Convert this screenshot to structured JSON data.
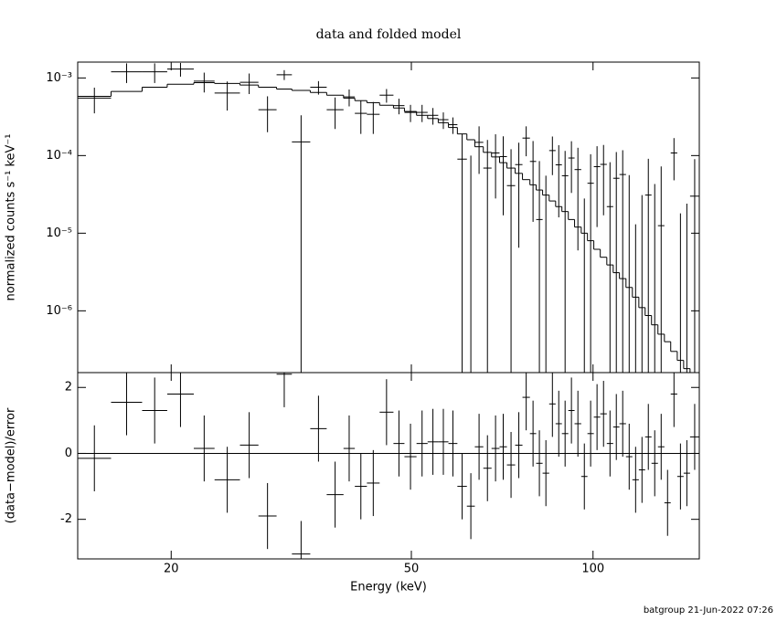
{
  "chart_data": {
    "title": "data and folded model",
    "xlabel": "Energy (keV)",
    "footer": "batgroup 21-Jun-2022 07:26",
    "xscale": "log",
    "xlim": [
      14,
      150
    ],
    "xticks": [
      20,
      50,
      100
    ],
    "bins": [
      14,
      15.9,
      17.9,
      19.7,
      21.8,
      23.6,
      26.0,
      27.9,
      29.9,
      31.7,
      34.0,
      36.2,
      38.6,
      40.3,
      42.2,
      44.3,
      46.7,
      48.7,
      51.0,
      53.2,
      55.4,
      57.6,
      59.6,
      61.8,
      63.7,
      65.8,
      67.9,
      70.0,
      72.0,
      74.3,
      76.4,
      78.6,
      80.5,
      82.5,
      84.6,
      86.7,
      88.8,
      91.0,
      93.2,
      95.6,
      97.9,
      100.3,
      102.8,
      105.4,
      108.0,
      110.6,
      113.4,
      116.2,
      119.1,
      122.0,
      125.0,
      128.1,
      131.3,
      134.5,
      137.9,
      141.3,
      144.8,
      150
    ],
    "panels": [
      {
        "type": "spectrum",
        "ylabel": "normalized counts s⁻¹ keV⁻¹",
        "yscale": "log",
        "ylim": [
          1.6e-07,
          0.0016
        ],
        "yticks": [
          {
            "value": 0.001,
            "label": "10⁻³"
          },
          {
            "value": 0.0001,
            "label": "10⁻⁴"
          },
          {
            "value": 1e-05,
            "label": "10⁻⁵"
          },
          {
            "value": 1e-06,
            "label": "10⁻⁶"
          }
        ],
        "data": {
          "color": "#000000",
          "values": [
            0.00055,
            0.0012,
            0.0012,
            0.0013,
            0.00091,
            0.00064,
            0.00088,
            0.00039,
            0.0011,
            0.00015,
            0.00076,
            0.00039,
            0.00057,
            0.00035,
            0.00034,
            0.0006,
            0.00044,
            0.00036,
            0.00036,
            0.00033,
            0.00029,
            0.00025,
            9e-05,
            0,
            0.000148,
            6.9e-05,
            0.000108,
            9.7e-05,
            4.1e-05,
            7.65e-05,
            0.000168,
            8.4e-05,
            1.5e-05,
            -5e-06,
            0.000116,
            7.6e-05,
            5.5e-05,
            9.3e-05,
            6.6e-05,
            -3.2e-05,
            4.4e-05,
            7.2e-05,
            7.7e-05,
            2.2e-05,
            5.1e-05,
            5.7e-05,
            -4e-06,
            -4.7e-05,
            -2.9e-05,
            3.1e-05,
            -1.7e-05,
            1.25e-05,
            -9e-05,
            0.000108,
            -4.2e-05,
            -3.6e-05,
            3e-05
          ],
          "errors": [
            0.0002,
            0.00034,
            0.00034,
            0.00026,
            0.00026,
            0.00026,
            0.00026,
            0.00019,
            0.00016,
            0.00018,
            0.00015,
            0.00017,
            0.00014,
            0.00016,
            0.00015,
            0.00012,
            0.0001,
            9e-05,
            9e-05,
            8e-05,
            7e-05,
            6e-05,
            0.0001,
            0.0001,
            9e-05,
            9e-05,
            8e-05,
            8e-05,
            8e-05,
            7e-05,
            7e-05,
            7e-05,
            7e-05,
            6e-05,
            6e-05,
            6e-05,
            6e-05,
            6e-05,
            6e-05,
            6e-05,
            6e-05,
            6e-05,
            6e-05,
            6e-05,
            6e-05,
            6e-05,
            6e-05,
            6e-05,
            6e-05,
            6e-05,
            6e-05,
            6e-05,
            6e-05,
            6e-05,
            6e-05,
            6e-05,
            6e-05
          ]
        },
        "model": {
          "color": "#000000",
          "values": [
            0.00058,
            0.00067,
            0.00076,
            0.00083,
            0.00087,
            0.00085,
            0.00081,
            0.00076,
            0.00072,
            0.00069,
            0.00065,
            0.0006,
            0.00055,
            0.00051,
            0.00048,
            0.000445,
            0.00041,
            0.00037,
            0.00033,
            0.0003,
            0.000265,
            0.00023,
            0.00019,
            0.00016,
            0.00013,
            0.00011,
            9.6e-05,
            8.1e-05,
            6.9e-05,
            5.9e-05,
            4.9e-05,
            4.2e-05,
            3.6e-05,
            3.1e-05,
            2.6e-05,
            2.2e-05,
            1.9e-05,
            1.5e-05,
            1.2e-05,
            1e-05,
            8e-06,
            6.2e-06,
            4.9e-06,
            3.9e-06,
            3.1e-06,
            2.6e-06,
            2e-06,
            1.5e-06,
            1.1e-06,
            8.7e-07,
            6.6e-07,
            5e-07,
            4e-07,
            3e-07,
            2.3e-07,
            1.8e-07,
            1.5e-07
          ]
        }
      },
      {
        "type": "residual",
        "ylabel": "(data−model)/error",
        "ylim": [
          -3.2,
          2.45
        ],
        "yticks": [
          -2,
          0,
          2
        ],
        "baseline": 0,
        "baseline_color": "#00cc00",
        "color": "#000000",
        "values": [
          -0.15,
          1.55,
          1.3,
          1.8,
          0.15,
          -0.8,
          0.25,
          -1.9,
          2.4,
          -3.05,
          0.75,
          -1.25,
          0.15,
          -1.0,
          -0.9,
          1.25,
          0.3,
          -0.1,
          0.3,
          0.35,
          0.35,
          0.3,
          -1.0,
          -1.6,
          0.2,
          -0.45,
          0.15,
          0.2,
          -0.35,
          0.25,
          1.7,
          0.6,
          -0.3,
          -0.6,
          1.5,
          0.9,
          0.6,
          1.3,
          0.9,
          -0.7,
          0.6,
          1.1,
          1.2,
          0.3,
          0.8,
          0.9,
          -0.1,
          -0.8,
          -0.5,
          0.5,
          -0.3,
          0.2,
          -1.5,
          1.8,
          -0.7,
          -0.6,
          0.5
        ],
        "errors": [
          1,
          1,
          1,
          1,
          1,
          1,
          1,
          1,
          1,
          1,
          1,
          1,
          1,
          1,
          1,
          1,
          1,
          1,
          1,
          1,
          1,
          1,
          1,
          1,
          1,
          1,
          1,
          1,
          1,
          1,
          1,
          1,
          1,
          1,
          1,
          1,
          1,
          1,
          1,
          1,
          1,
          1,
          1,
          1,
          1,
          1,
          1,
          1,
          1,
          1,
          1,
          1,
          1,
          1,
          1,
          1,
          1
        ]
      }
    ]
  }
}
